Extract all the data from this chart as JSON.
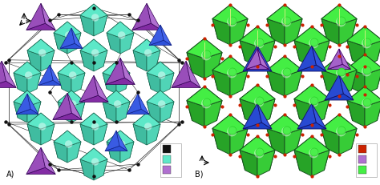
{
  "figsize": [
    4.74,
    2.31
  ],
  "dpi": 100,
  "bg_color": "#ffffff",
  "teal_light": "#5de8c8",
  "teal_mid": "#3dc8a8",
  "teal_dark": "#2a9980",
  "purple_light": "#b070d0",
  "purple_mid": "#8844bb",
  "purple_dark": "#5520880",
  "blue_light": "#4466ee",
  "blue_mid": "#2244cc",
  "green_light": "#44ee44",
  "green_mid": "#22cc22",
  "green_dark": "#116611",
  "dkgreen_edge": "#1a5520",
  "blue2_light": "#3355dd",
  "blue2_mid": "#1133bb",
  "black_dot": "#111111",
  "red_dot": "#cc2200",
  "white_sphere": "#ddfff5",
  "green_sphere": "#55ee55"
}
